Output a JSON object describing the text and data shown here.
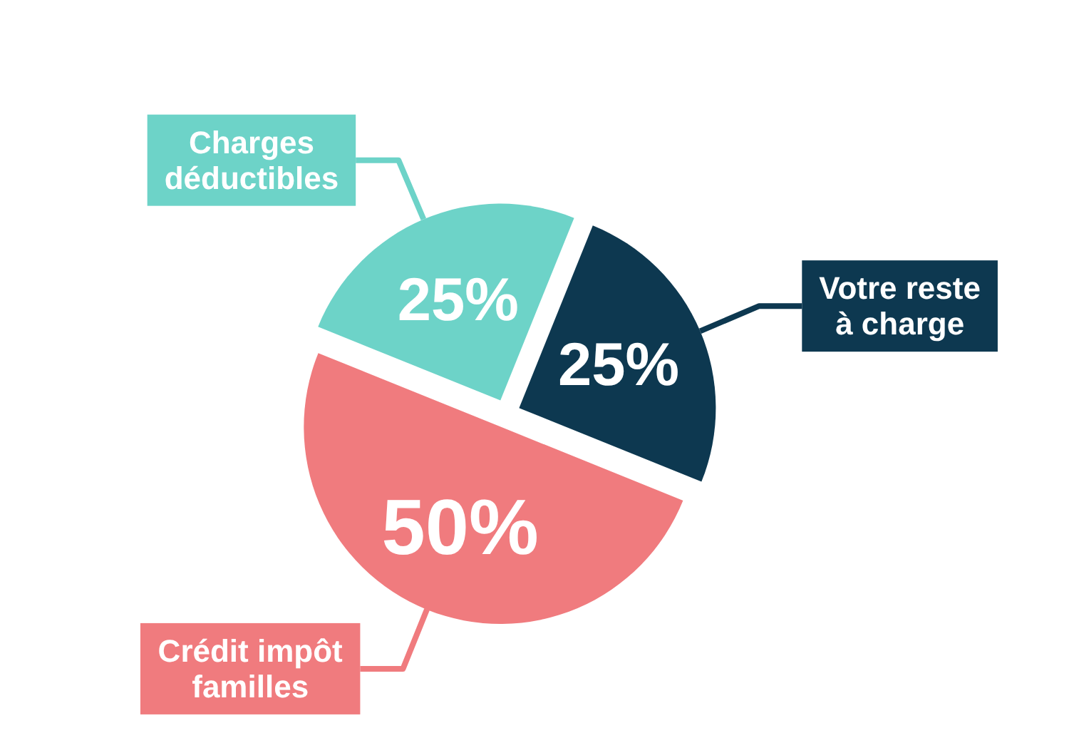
{
  "chart_data": {
    "type": "pie",
    "categories": [
      "Votre reste à charge",
      "Crédit impôt familles",
      "Charges déductibles"
    ],
    "values": [
      25,
      50,
      25
    ],
    "colors": [
      "#0d3850",
      "#f07b7e",
      "#6dd3c8"
    ],
    "value_labels": [
      "25%",
      "50%",
      "25%"
    ]
  }
}
